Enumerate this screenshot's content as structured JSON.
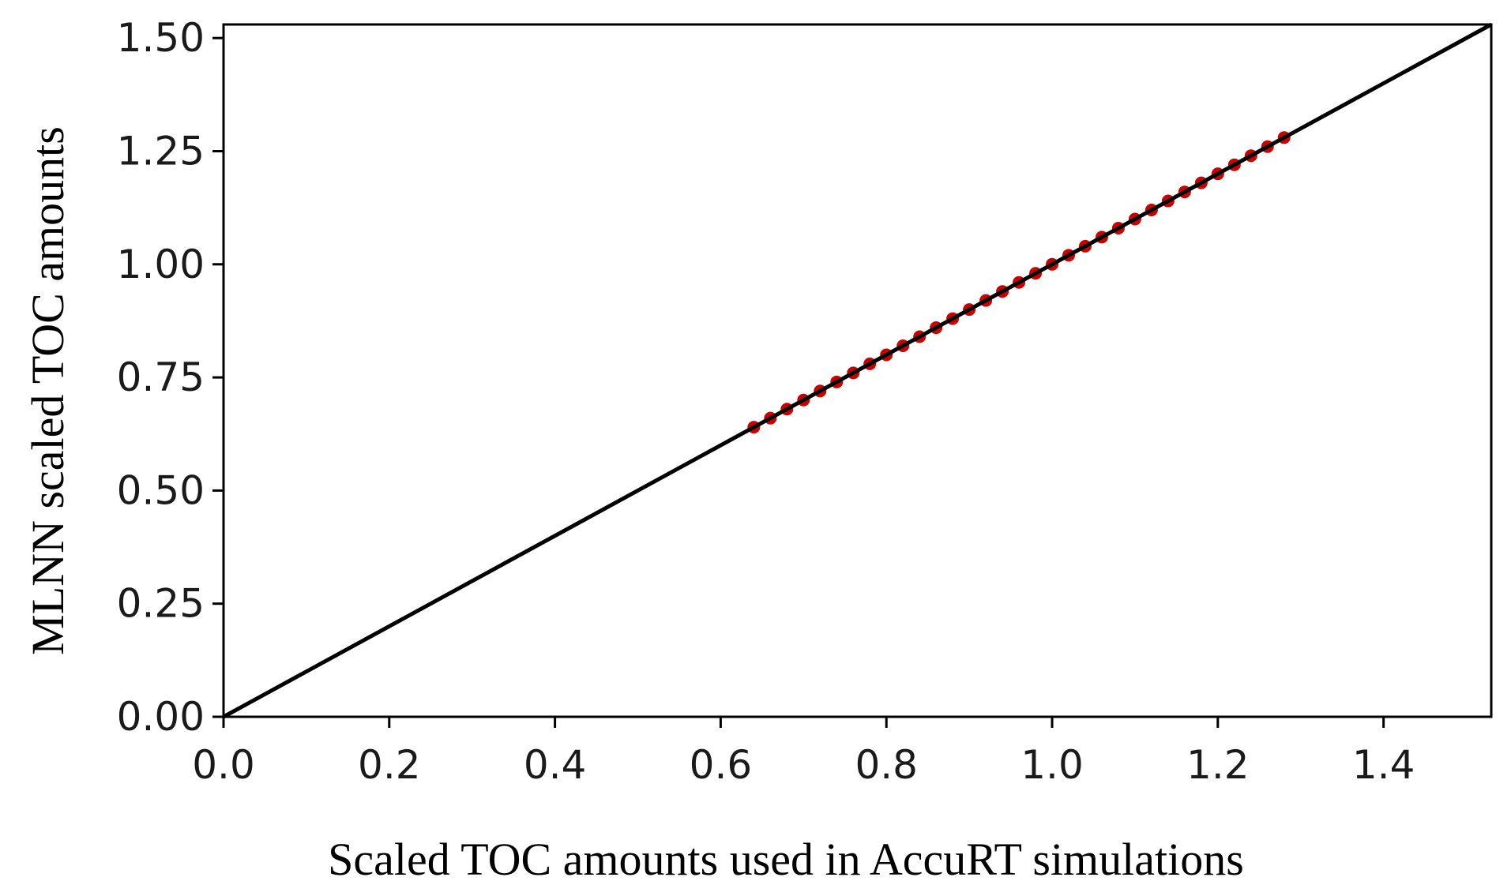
{
  "chart_data": {
    "type": "scatter",
    "title": "",
    "xlabel": "Scaled TOC amounts used in AccuRT simulations",
    "ylabel": "MLNN scaled TOC amounts",
    "xlim": [
      0.0,
      1.53
    ],
    "ylim": [
      0.0,
      1.53
    ],
    "x_ticks": [
      "0.0",
      "0.2",
      "0.4",
      "0.6",
      "0.8",
      "1.0",
      "1.2",
      "1.4"
    ],
    "y_ticks": [
      "0.00",
      "0.25",
      "0.50",
      "0.75",
      "1.00",
      "1.25",
      "1.50"
    ],
    "grid": false,
    "legend": false,
    "reference_line": {
      "type": "identity",
      "from": [
        0.0,
        0.0
      ],
      "to": [
        1.53,
        1.53
      ],
      "color": "#000000"
    },
    "series": [
      {
        "color": "#cc0000",
        "x": [
          0.64,
          0.66,
          0.68,
          0.7,
          0.72,
          0.74,
          0.76,
          0.78,
          0.8,
          0.82,
          0.84,
          0.86,
          0.88,
          0.9,
          0.92,
          0.94,
          0.96,
          0.98,
          1.0,
          1.02,
          1.04,
          1.06,
          1.08,
          1.1,
          1.12,
          1.14,
          1.16,
          1.18,
          1.2,
          1.22,
          1.24,
          1.26,
          1.28
        ],
        "y": [
          0.64,
          0.66,
          0.68,
          0.7,
          0.72,
          0.74,
          0.76,
          0.78,
          0.8,
          0.82,
          0.84,
          0.86,
          0.88,
          0.9,
          0.92,
          0.94,
          0.96,
          0.98,
          1.0,
          1.02,
          1.04,
          1.06,
          1.08,
          1.1,
          1.12,
          1.14,
          1.16,
          1.18,
          1.2,
          1.22,
          1.24,
          1.26,
          1.28
        ]
      }
    ]
  }
}
